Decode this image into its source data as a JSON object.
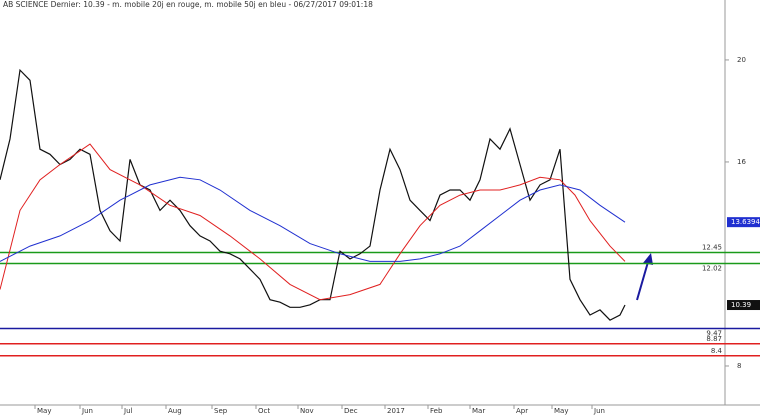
{
  "chart_data": {
    "type": "line",
    "title": "AB SCIENCE Dernier: 10.39 - m. mobile 20j en rouge, m. mobile 50j en bleu - 06/27/2017 09:01:18",
    "xlim": [
      0,
      72.5
    ],
    "ylim": [
      6.47,
      22.35
    ],
    "xticks": [
      {
        "value": 3.5,
        "label": "May"
      },
      {
        "value": 8,
        "label": "Jun"
      },
      {
        "value": 12.2,
        "label": "Jul"
      },
      {
        "value": 16.6,
        "label": "Aug"
      },
      {
        "value": 21.2,
        "label": "Sep"
      },
      {
        "value": 25.6,
        "label": "Oct"
      },
      {
        "value": 29.8,
        "label": "Nov"
      },
      {
        "value": 34.2,
        "label": "Dec"
      },
      {
        "value": 38.5,
        "label": "2017"
      },
      {
        "value": 42.8,
        "label": "Feb"
      },
      {
        "value": 47,
        "label": "Mar"
      },
      {
        "value": 51.4,
        "label": "Apr"
      },
      {
        "value": 55.2,
        "label": "May"
      },
      {
        "value": 59.2,
        "label": "Jun"
      }
    ],
    "yticks": [
      20,
      16,
      8
    ],
    "series": [
      {
        "color": "#111111",
        "x": [
          0,
          1,
          2,
          3,
          4,
          5,
          6,
          7,
          8,
          9,
          10,
          11,
          12,
          13,
          14,
          15,
          16,
          17,
          18,
          19,
          20,
          21,
          22,
          23,
          24,
          25,
          26,
          27,
          28,
          29,
          30,
          31,
          32,
          33,
          34,
          35,
          36,
          37,
          38,
          39,
          40,
          41,
          42,
          43,
          44,
          45,
          46,
          47,
          48,
          49,
          50,
          51,
          52,
          53,
          54,
          55,
          56,
          57,
          58,
          59,
          60,
          61,
          62,
          62.5
        ],
        "values": [
          15.3,
          16.9,
          19.6,
          19.2,
          16.5,
          16.3,
          15.9,
          16.1,
          16.5,
          16.3,
          14.1,
          13.3,
          12.9,
          16.1,
          15.1,
          14.9,
          14.1,
          14.5,
          14.1,
          13.5,
          13.1,
          12.9,
          12.5,
          12.4,
          12.2,
          11.8,
          11.4,
          10.6,
          10.5,
          10.3,
          10.3,
          10.4,
          10.6,
          10.6,
          12.5,
          12.2,
          12.4,
          12.7,
          14.9,
          16.5,
          15.7,
          14.5,
          14.1,
          13.7,
          14.7,
          14.9,
          14.9,
          14.5,
          15.3,
          16.9,
          16.5,
          17.3,
          15.9,
          14.5,
          15.1,
          15.3,
          16.5,
          11.4,
          10.6,
          10.0,
          10.2,
          9.8,
          10.0,
          10.39
        ]
      },
      {
        "color": "#e02020",
        "x": [
          0,
          2,
          4,
          6,
          9,
          11,
          14,
          17,
          20,
          23,
          26,
          29,
          32,
          35,
          38,
          40,
          42,
          44,
          46,
          48,
          50,
          52,
          54,
          56,
          57.5,
          59,
          61,
          62.5
        ],
        "values": [
          11.0,
          14.1,
          15.3,
          15.9,
          16.7,
          15.7,
          15.1,
          14.3,
          13.9,
          13.1,
          12.2,
          11.2,
          10.6,
          10.8,
          11.2,
          12.4,
          13.5,
          14.3,
          14.7,
          14.9,
          14.9,
          15.1,
          15.4,
          15.3,
          14.7,
          13.7,
          12.7,
          12.1
        ]
      },
      {
        "color": "#2030d0",
        "x": [
          0,
          3,
          6,
          9,
          12,
          15,
          18,
          20,
          22,
          25,
          28,
          31,
          34,
          37,
          40,
          42,
          44,
          46,
          48,
          50,
          52,
          54,
          56,
          58,
          60,
          62.5
        ],
        "values": [
          12.1,
          12.7,
          13.1,
          13.7,
          14.5,
          15.1,
          15.4,
          15.3,
          14.9,
          14.1,
          13.5,
          12.8,
          12.4,
          12.1,
          12.1,
          12.2,
          12.4,
          12.7,
          13.3,
          13.9,
          14.5,
          14.9,
          15.1,
          14.9,
          14.3,
          13.6394
        ]
      }
    ],
    "levels": [
      {
        "value": 12.45,
        "color": "#1a9a1a"
      },
      {
        "value": 12.02,
        "color": "#1a9a1a"
      },
      {
        "value": 9.47,
        "color": "#1a1aa0"
      },
      {
        "value": 8.87,
        "color": "#e02020"
      },
      {
        "value": 8.4,
        "color": "#e02020"
      }
    ]
  }
}
